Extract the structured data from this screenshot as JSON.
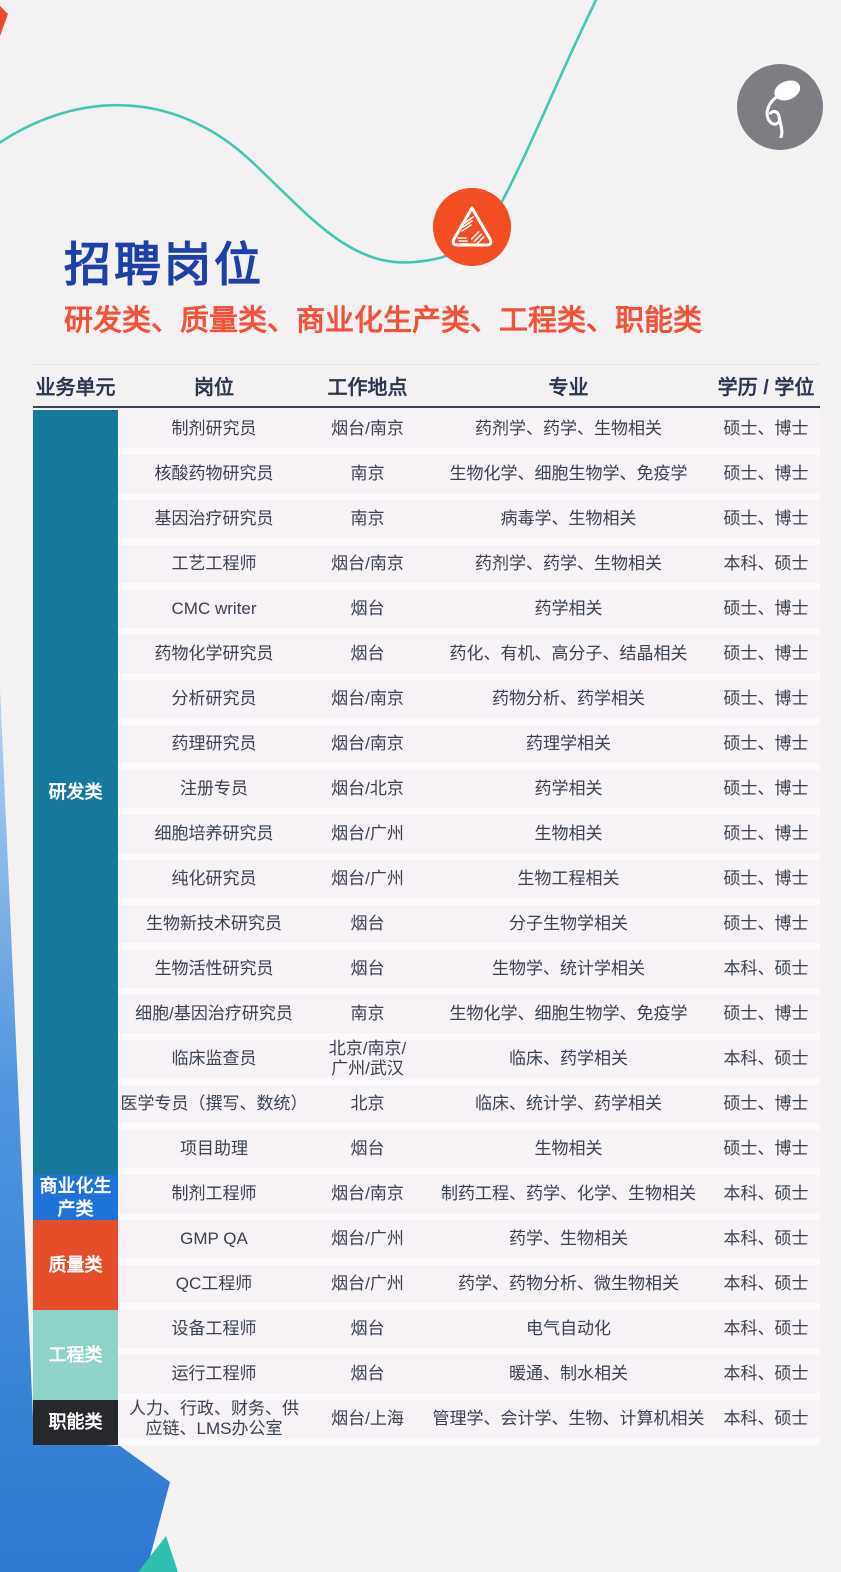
{
  "header": {
    "title": "招聘岗位",
    "subtitle": "研发类、质量类、商业化生产类、工程类、职能类"
  },
  "colors": {
    "title": "#1c3fa9",
    "subtitle": "#f15238",
    "curve": "#3fc9b4",
    "badge": "#f24e24",
    "logo": "#7f7c83",
    "wedge_top": "#b8d3ee",
    "wedge_bottom": "#2d79d2"
  },
  "table": {
    "columns": [
      "业务单元",
      "岗位",
      "工作地点",
      "专业",
      "学历 / 学位"
    ],
    "categories": [
      {
        "label": "研发类",
        "color": "#17789e",
        "rows": 17
      },
      {
        "label": "商业化生产类",
        "color": "#1d73da",
        "rows": 1
      },
      {
        "label": "质量类",
        "color": "#e64e2a",
        "rows": 2
      },
      {
        "label": "工程类",
        "color": "#8fd2c8",
        "rows": 2
      },
      {
        "label": "职能类",
        "color": "#26282b",
        "rows": 1
      }
    ],
    "rows": [
      {
        "position": "制剂研究员",
        "location": "烟台/南京",
        "major": "药剂学、药学、生物相关",
        "degree": "硕士、博士"
      },
      {
        "position": "核酸药物研究员",
        "location": "南京",
        "major": "生物化学、细胞生物学、免疫学",
        "degree": "硕士、博士"
      },
      {
        "position": "基因治疗研究员",
        "location": "南京",
        "major": "病毒学、生物相关",
        "degree": "硕士、博士"
      },
      {
        "position": "工艺工程师",
        "location": "烟台/南京",
        "major": "药剂学、药学、生物相关",
        "degree": "本科、硕士"
      },
      {
        "position": "CMC writer",
        "location": "烟台",
        "major": "药学相关",
        "degree": "硕士、博士"
      },
      {
        "position": "药物化学研究员",
        "location": "烟台",
        "major": "药化、有机、高分子、结晶相关",
        "degree": "硕士、博士"
      },
      {
        "position": "分析研究员",
        "location": "烟台/南京",
        "major": "药物分析、药学相关",
        "degree": "硕士、博士"
      },
      {
        "position": "药理研究员",
        "location": "烟台/南京",
        "major": "药理学相关",
        "degree": "硕士、博士"
      },
      {
        "position": "注册专员",
        "location": "烟台/北京",
        "major": "药学相关",
        "degree": "硕士、博士"
      },
      {
        "position": "细胞培养研究员",
        "location": "烟台/广州",
        "major": "生物相关",
        "degree": "硕士、博士"
      },
      {
        "position": "纯化研究员",
        "location": "烟台/广州",
        "major": "生物工程相关",
        "degree": "硕士、博士"
      },
      {
        "position": "生物新技术研究员",
        "location": "烟台",
        "major": "分子生物学相关",
        "degree": "硕士、博士"
      },
      {
        "position": "生物活性研究员",
        "location": "烟台",
        "major": "生物学、统计学相关",
        "degree": "本科、硕士"
      },
      {
        "position": "细胞/基因治疗研究员",
        "location": "南京",
        "major": "生物化学、细胞生物学、免疫学",
        "degree": "硕士、博士"
      },
      {
        "position": "临床监查员",
        "location": "北京/南京/\n广州/武汉",
        "major": "临床、药学相关",
        "degree": "本科、硕士"
      },
      {
        "position": "医学专员（撰写、数统）",
        "location": "北京",
        "major": "临床、统计学、药学相关",
        "degree": "硕士、博士"
      },
      {
        "position": "项目助理",
        "location": "烟台",
        "major": "生物相关",
        "degree": "硕士、博士"
      },
      {
        "position": "制剂工程师",
        "location": "烟台/南京",
        "major": "制药工程、药学、化学、生物相关",
        "degree": "本科、硕士"
      },
      {
        "position": "GMP QA",
        "location": "烟台/广州",
        "major": "药学、生物相关",
        "degree": "本科、硕士"
      },
      {
        "position": "QC工程师",
        "location": "烟台/广州",
        "major": "药学、药物分析、微生物相关",
        "degree": "本科、硕士"
      },
      {
        "position": "设备工程师",
        "location": "烟台",
        "major": "电气自动化",
        "degree": "本科、硕士"
      },
      {
        "position": "运行工程师",
        "location": "烟台",
        "major": "暖通、制水相关",
        "degree": "本科、硕士"
      },
      {
        "position": "人力、行政、财务、供\n应链、LMS办公室",
        "location": "烟台/上海",
        "major": "管理学、会计学、生物、计算机相关",
        "degree": "本科、硕士"
      }
    ]
  }
}
